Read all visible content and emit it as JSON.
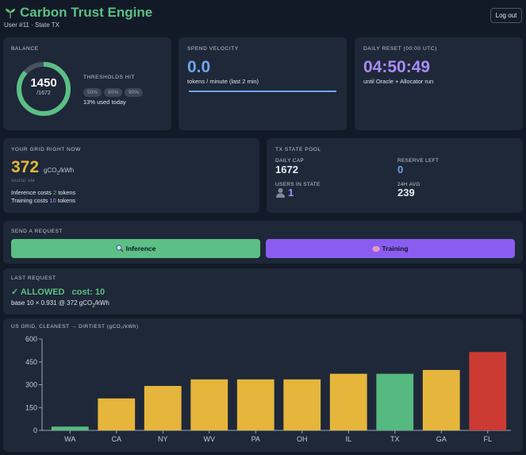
{
  "header": {
    "title": "Carbon Trust Engine",
    "subtitle": "User #11 · State TX",
    "logout_label": "Log out"
  },
  "balance": {
    "label": "BALANCE",
    "value": "1450",
    "total": "/1672",
    "fraction": 0.867,
    "thresholds_label": "THRESHOLDS HIT",
    "thresholds": [
      "50%",
      "80%",
      "90%"
    ],
    "used_today": "13% used today"
  },
  "velocity": {
    "label": "SPEND VELOCITY",
    "value": "0.0",
    "unit": "tokens / minute (last 2 min)"
  },
  "reset": {
    "label": "DAILY RESET (00:00 UTC)",
    "value": "04:50:49",
    "note": "until Oracle + Allocator run"
  },
  "grid": {
    "label": "YOUR GRID RIGHT NOW",
    "value": "372",
    "unit_prefix": "gCO",
    "unit_sub": "2",
    "unit_suffix": "/kWh",
    "source": "source: eia",
    "inference_prefix": "Inference costs ",
    "inference_cost": "2",
    "inference_suffix": " tokens",
    "training_prefix": "Training costs ",
    "training_cost": "10",
    "training_suffix": " tokens"
  },
  "pool": {
    "label": "TX STATE POOL",
    "daily_cap_label": "DAILY CAP",
    "daily_cap": "1672",
    "reserve_label": "RESERVE LEFT",
    "reserve": "0",
    "users_label": "USERS IN STATE",
    "users": "1",
    "avg_label": "24H AVG",
    "avg": "239"
  },
  "request": {
    "label": "SEND A REQUEST",
    "inference_label": "Inference",
    "training_label": "Training"
  },
  "last_request": {
    "label": "LAST REQUEST",
    "status": "ALLOWED",
    "cost": "cost: 10",
    "detail_prefix": "base 10 × 0.931 @ 372 gCO",
    "detail_sub": "2",
    "detail_suffix": "/kWh"
  },
  "colors": {
    "green": "#5cbf85",
    "blue": "#6ea6f0",
    "purple": "#a98cf7",
    "yellow": "#e6b63c",
    "red": "#cc3b33",
    "bar_green": "#56b97f",
    "training_purple": "#8b5cf0"
  },
  "chart_data": {
    "type": "bar",
    "title": "US GRID, CLEANEST → DIRTIEST (gCO₂/kWh)",
    "categories": [
      "WA",
      "CA",
      "NY",
      "WV",
      "PA",
      "OH",
      "IL",
      "TX",
      "GA",
      "FL"
    ],
    "values": [
      25,
      210,
      292,
      335,
      335,
      335,
      372,
      372,
      397,
      515
    ],
    "bar_colors": [
      "#56b97f",
      "#e6b63c",
      "#e6b63c",
      "#e6b63c",
      "#e6b63c",
      "#e6b63c",
      "#e6b63c",
      "#56b97f",
      "#e6b63c",
      "#cc3b33"
    ],
    "yticks": [
      0,
      150,
      300,
      450,
      600
    ],
    "ylim": [
      0,
      600
    ],
    "grid": false
  }
}
